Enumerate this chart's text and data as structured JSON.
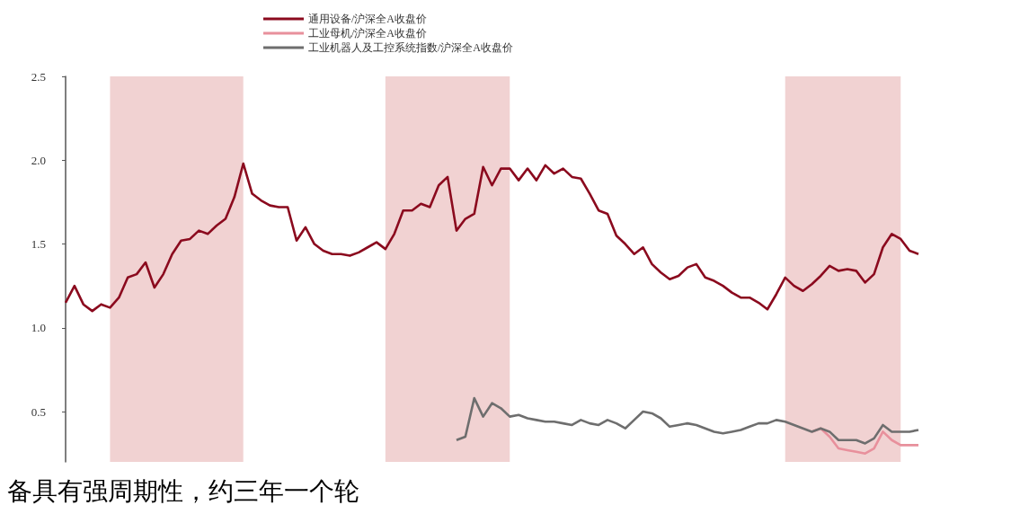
{
  "chart_data": {
    "type": "line",
    "categories": [
      null,
      null,
      null,
      null,
      null,
      null,
      null,
      null,
      null,
      null,
      null,
      null,
      null,
      null,
      null,
      null,
      null,
      null,
      null,
      null,
      null,
      null,
      null,
      null,
      null,
      null,
      null,
      null,
      null,
      null,
      null,
      null,
      null,
      null,
      null,
      null,
      null,
      null,
      null,
      null,
      null,
      null,
      null,
      null,
      null,
      null,
      null,
      null,
      null,
      null,
      null,
      null,
      null,
      null,
      null,
      null,
      null,
      null,
      null,
      null,
      null,
      null,
      null,
      null,
      null,
      null,
      null,
      null,
      null,
      null,
      null,
      null,
      null,
      null,
      null,
      null,
      null,
      null,
      null,
      null,
      null,
      null,
      null,
      null,
      null,
      null,
      null,
      null,
      null,
      null,
      null,
      null,
      null,
      null,
      null,
      null,
      null
    ],
    "ylim": [
      0.2,
      2.5
    ],
    "yticks": [
      0.5,
      {
        "value": 1,
        "label": "1.0"
      },
      1.5,
      {
        "value": 2,
        "label": "2.0"
      },
      2.5
    ],
    "tick_labels": "y",
    "grid": false,
    "legend": "top",
    "marker": "none",
    "line_style": "solid",
    "annotations": [
      "备具有强周期性，约三年一个轮"
    ],
    "series": [
      {
        "name": "通用设备/沪深全A收盘价",
        "color": "#8b0a1e",
        "values": [
          1.15,
          1.25,
          1.14,
          1.1,
          1.14,
          1.12,
          1.18,
          1.3,
          1.32,
          1.39,
          1.24,
          1.32,
          1.44,
          1.52,
          1.53,
          1.58,
          1.56,
          1.61,
          1.65,
          1.78,
          1.98,
          1.8,
          1.76,
          1.73,
          1.72,
          1.72,
          1.52,
          1.6,
          1.5,
          1.46,
          1.44,
          1.44,
          1.43,
          1.45,
          1.48,
          1.51,
          1.47,
          1.56,
          1.7,
          1.7,
          1.74,
          1.72,
          1.85,
          1.9,
          1.58,
          1.65,
          1.68,
          1.96,
          1.85,
          1.95,
          1.95,
          1.88,
          1.95,
          1.88,
          1.97,
          1.92,
          1.95,
          1.9,
          1.89,
          1.8,
          1.7,
          1.68,
          1.55,
          1.5,
          1.44,
          1.48,
          1.38,
          1.33,
          1.29,
          1.31,
          1.36,
          1.38,
          1.3,
          1.28,
          1.25,
          1.21,
          1.18,
          1.18,
          1.15,
          1.11,
          1.2,
          1.3,
          1.25,
          1.22,
          1.26,
          1.31,
          1.37,
          1.34,
          1.35,
          1.34,
          1.27,
          1.32,
          1.48,
          1.56,
          1.53,
          1.46,
          1.44
        ]
      },
      {
        "name": "工业母机/沪深全A收盘价",
        "color": "#e8909c",
        "values": [
          null,
          null,
          null,
          null,
          null,
          null,
          null,
          null,
          null,
          null,
          null,
          null,
          null,
          null,
          null,
          null,
          null,
          null,
          null,
          null,
          null,
          null,
          null,
          null,
          null,
          null,
          null,
          null,
          null,
          null,
          null,
          null,
          null,
          null,
          null,
          null,
          null,
          null,
          null,
          null,
          null,
          null,
          null,
          null,
          null,
          null,
          null,
          null,
          null,
          null,
          null,
          null,
          null,
          null,
          null,
          null,
          null,
          null,
          null,
          null,
          null,
          null,
          null,
          null,
          null,
          null,
          null,
          null,
          null,
          null,
          null,
          null,
          null,
          null,
          null,
          null,
          null,
          null,
          null,
          null,
          null,
          null,
          null,
          null,
          0.38,
          0.4,
          0.35,
          0.28,
          0.27,
          0.26,
          0.25,
          0.28,
          0.38,
          0.33,
          0.3,
          0.3,
          0.3
        ]
      },
      {
        "name": "工业机器人及工控系统指数/沪深全A收盘价",
        "color": "#6e6e6e",
        "values": [
          null,
          null,
          null,
          null,
          null,
          null,
          null,
          null,
          null,
          null,
          null,
          null,
          null,
          null,
          null,
          null,
          null,
          null,
          null,
          null,
          null,
          null,
          null,
          null,
          null,
          null,
          null,
          null,
          null,
          null,
          null,
          null,
          null,
          null,
          null,
          null,
          null,
          null,
          null,
          null,
          null,
          null,
          null,
          null,
          0.33,
          0.35,
          0.58,
          0.47,
          0.55,
          0.52,
          0.47,
          0.48,
          0.46,
          0.45,
          0.44,
          0.44,
          0.43,
          0.42,
          0.45,
          0.43,
          0.42,
          0.45,
          0.43,
          0.4,
          0.45,
          0.5,
          0.49,
          0.46,
          0.41,
          0.42,
          0.43,
          0.42,
          0.4,
          0.38,
          0.37,
          0.38,
          0.39,
          0.41,
          0.43,
          0.43,
          0.45,
          0.44,
          0.42,
          0.4,
          0.38,
          0.4,
          0.38,
          0.33,
          0.33,
          0.33,
          0.31,
          0.34,
          0.42,
          0.38,
          0.38,
          0.38,
          0.39
        ]
      }
    ]
  }
}
